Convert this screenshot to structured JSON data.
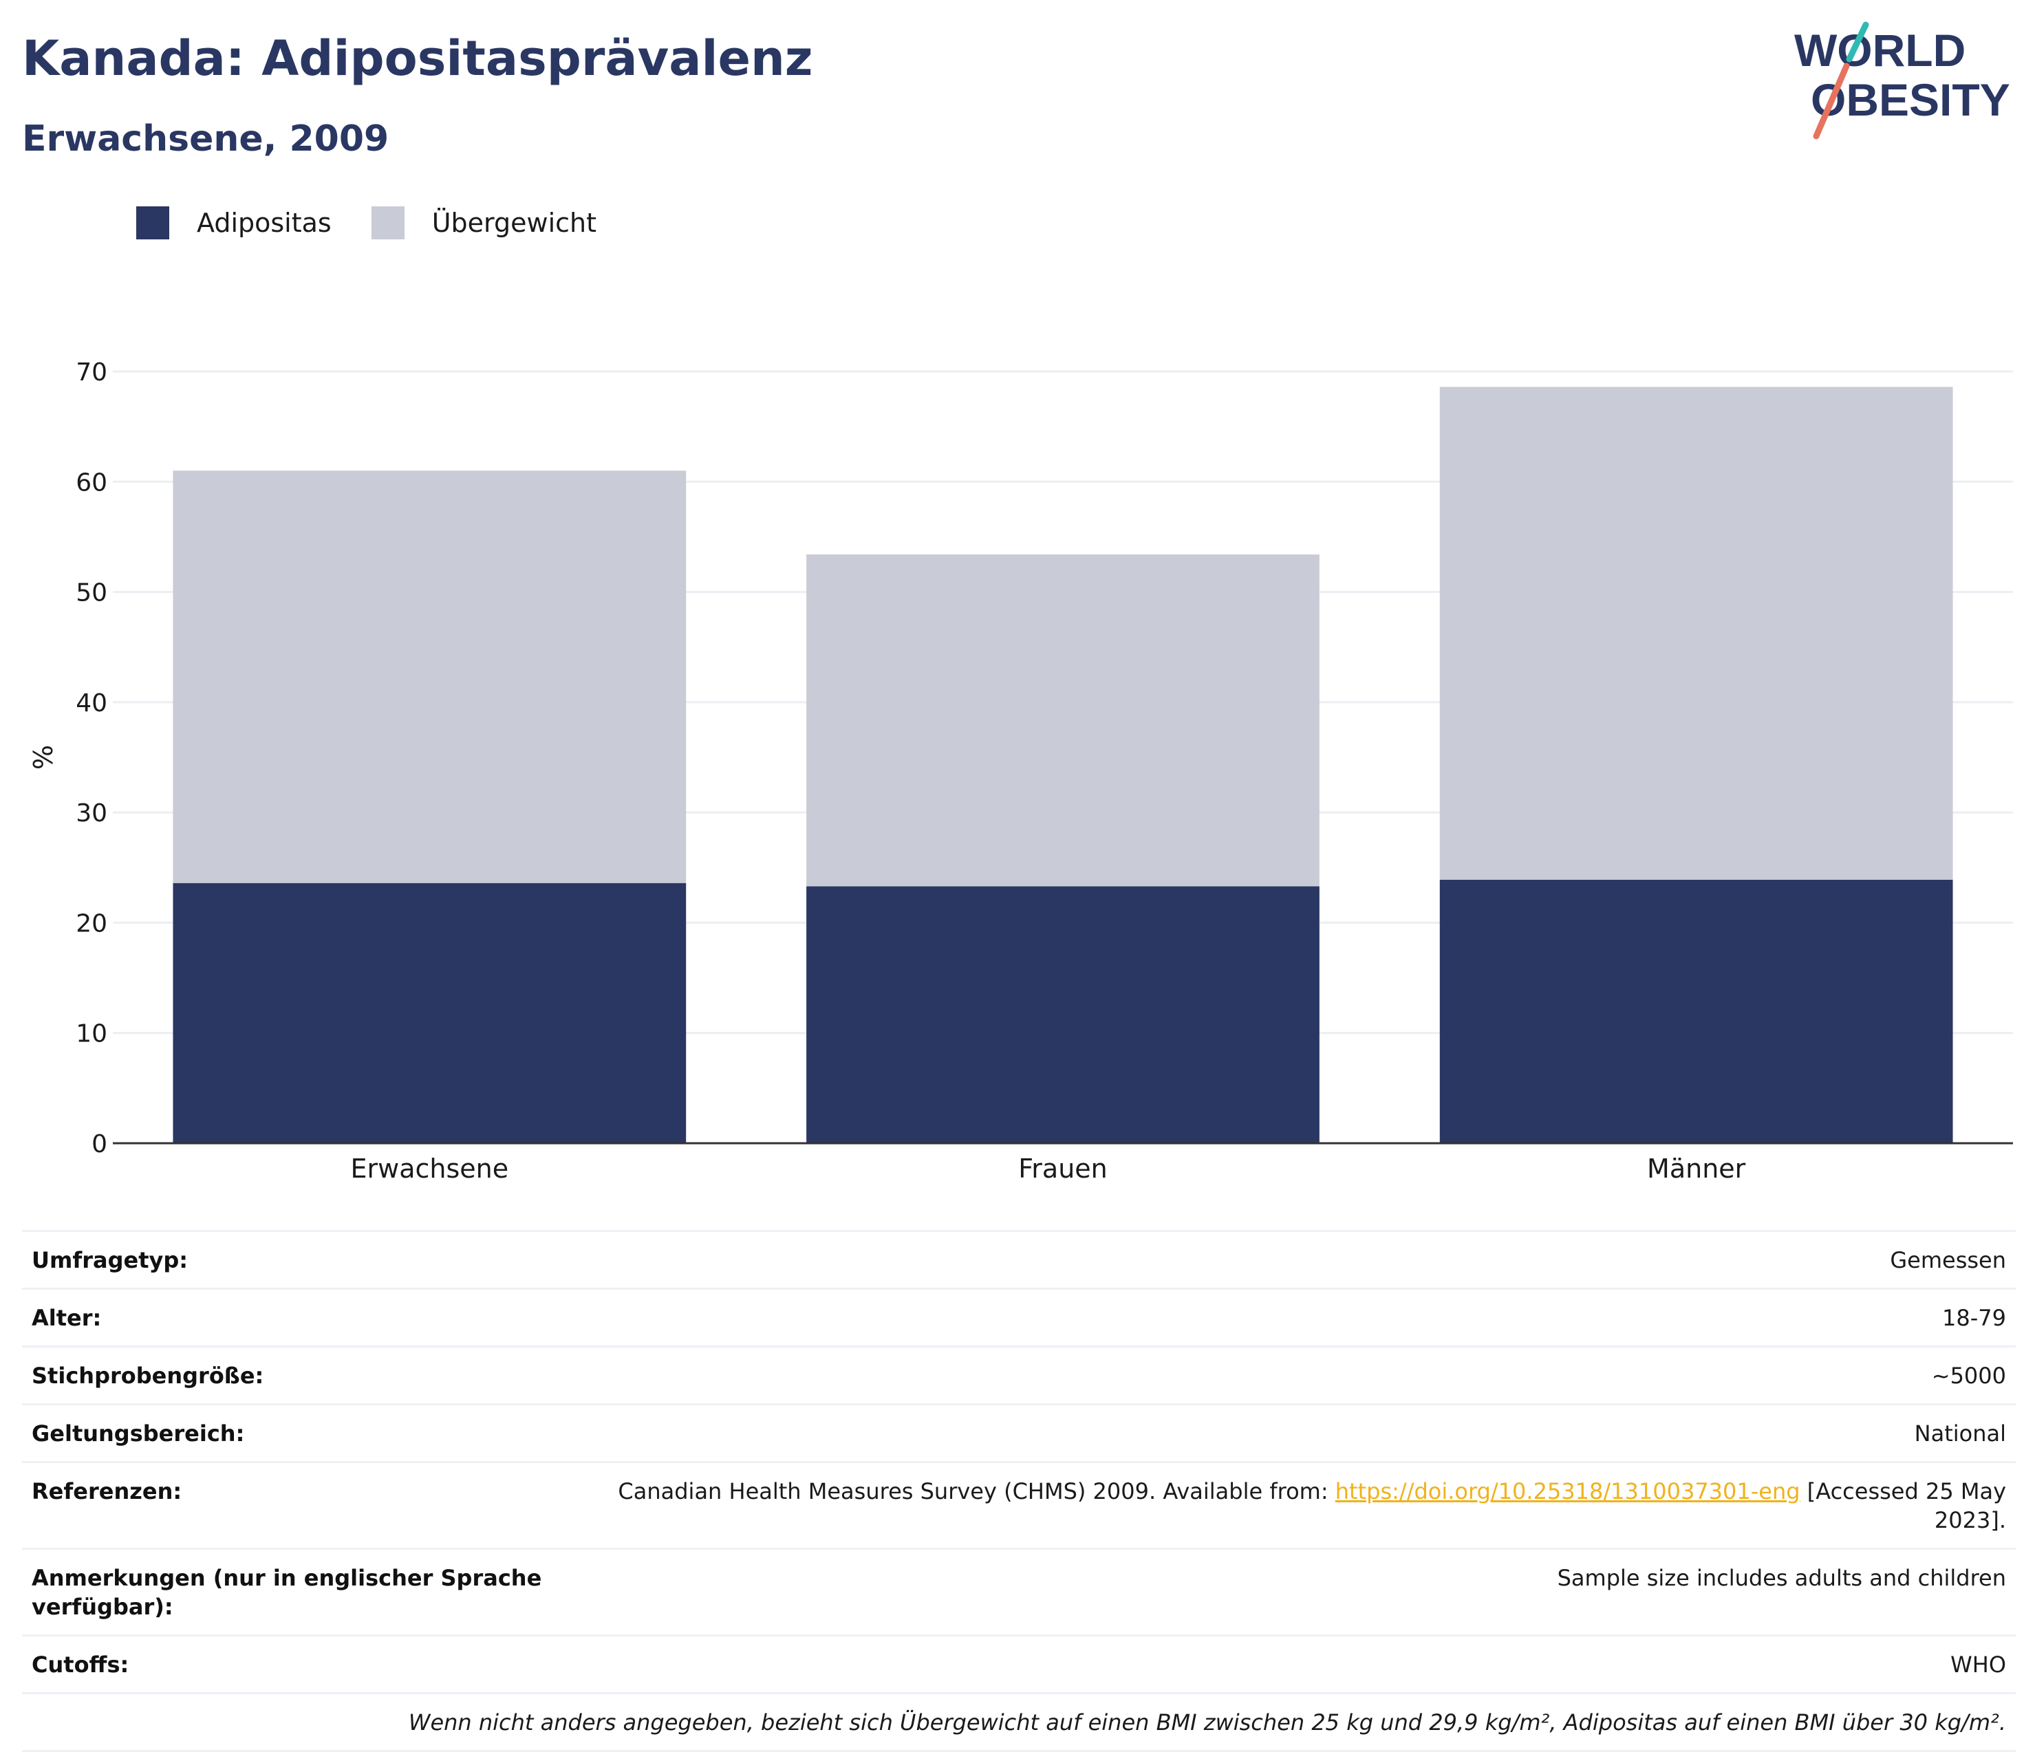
{
  "header": {
    "title": "Kanada: Adipositasprävalenz",
    "subtitle": "Erwachsene, 2009",
    "logo_line1": "WORLD",
    "logo_line2": "OBESITY"
  },
  "legend": [
    {
      "label": "Adipositas",
      "color": "#2a3763"
    },
    {
      "label": "Übergewicht",
      "color": "#c9cbd6"
    }
  ],
  "chart_data": {
    "type": "bar",
    "stacked": true,
    "categories": [
      "Erwachsene",
      "Frauen",
      "Männer"
    ],
    "series": [
      {
        "name": "Adipositas",
        "values": [
          23.6,
          23.3,
          23.9
        ],
        "color": "#2a3763"
      },
      {
        "name": "Übergewicht",
        "values": [
          37.4,
          30.1,
          44.7
        ],
        "color": "#c9cbd6"
      }
    ],
    "ylabel": "%",
    "ylim": [
      0,
      70
    ],
    "yticks": [
      0,
      10,
      20,
      30,
      40,
      50,
      60,
      70
    ],
    "grid": true,
    "legend_position": "top-left"
  },
  "info": {
    "rows": [
      {
        "key": "Umfragetyp:",
        "value": "Gemessen"
      },
      {
        "key": "Alter:",
        "value": "18-79"
      },
      {
        "key": "Stichprobengröße:",
        "value": "~5000"
      },
      {
        "key": "Geltungsbereich:",
        "value": "National"
      },
      {
        "key": "Anmerkungen (nur in englischer Sprache verfügbar):",
        "value": "Sample size includes adults and children"
      },
      {
        "key": "Cutoffs:",
        "value": "WHO"
      }
    ],
    "references": {
      "key": "Referenzen:",
      "text_before": "Canadian Health Measures Survey (CHMS) 2009. Available from: ",
      "link": "https://doi.org/10.25318/1310037301-eng",
      "text_after": " [Accessed 25 May 2023]."
    },
    "footnote": "Wenn nicht anders angegeben, bezieht sich Übergewicht auf einen BMI zwischen 25 kg und 29,9 kg/m², Adipositas auf einen BMI über 30 kg/m²."
  }
}
